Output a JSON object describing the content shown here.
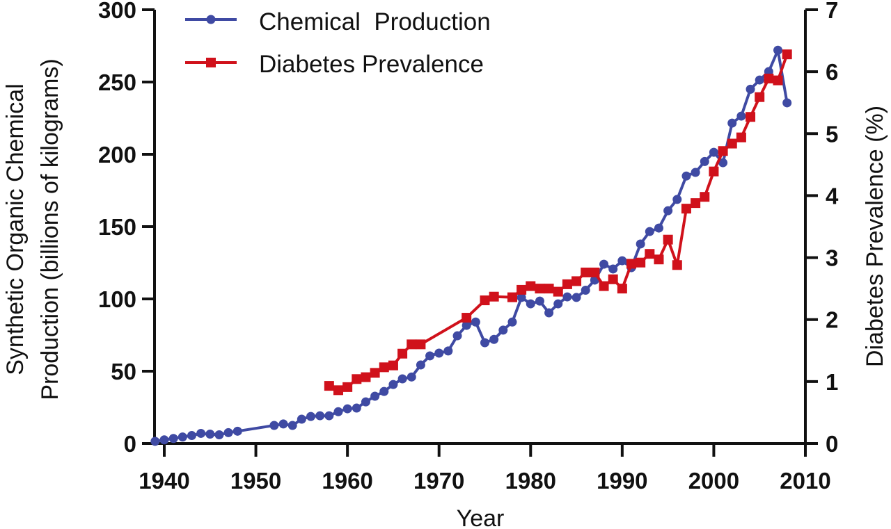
{
  "chart_data": {
    "type": "line",
    "title": "",
    "xlabel": "Year",
    "ylabel": [
      "Synthetic  Organic  Chemical",
      "Production (billions of kilograms)"
    ],
    "y2label": "Diabetes  Prevalence (%)",
    "xlim": [
      1939,
      2010
    ],
    "ylim": [
      0,
      300
    ],
    "y2lim": [
      0,
      7
    ],
    "x_ticks": [
      1940,
      1950,
      1960,
      1970,
      1980,
      1990,
      2000,
      2010
    ],
    "y_ticks": [
      0,
      50,
      100,
      150,
      200,
      250,
      300
    ],
    "y2_ticks": [
      0,
      1,
      2,
      3,
      4,
      5,
      6,
      7
    ],
    "grid": false,
    "legend_position": "top-left",
    "series": [
      {
        "name": "Chemical  Production",
        "axis": "left",
        "color": "#3f4aa3",
        "marker": "circle",
        "x": [
          1939,
          1940,
          1941,
          1942,
          1943,
          1944,
          1945,
          1946,
          1947,
          1948,
          1952,
          1953,
          1954,
          1955,
          1956,
          1957,
          1958,
          1959,
          1960,
          1961,
          1962,
          1963,
          1964,
          1965,
          1966,
          1967,
          1968,
          1969,
          1970,
          1971,
          1972,
          1973,
          1974,
          1975,
          1976,
          1977,
          1978,
          1979,
          1980,
          1981,
          1982,
          1983,
          1984,
          1985,
          1986,
          1987,
          1988,
          1989,
          1990,
          1991,
          1992,
          1993,
          1994,
          1995,
          1996,
          1997,
          1998,
          1999,
          2000,
          2001,
          2002,
          2003,
          2004,
          2005,
          2006,
          2007,
          2008
        ],
        "values": [
          1.5,
          2.5,
          3.5,
          4.5,
          5.5,
          7,
          6.5,
          6,
          7.5,
          8.5,
          12.5,
          13.5,
          12.5,
          16.8,
          18.7,
          19.2,
          19.2,
          22,
          24,
          24.5,
          28.8,
          32.7,
          36,
          40.8,
          44.7,
          46,
          54.3,
          60.6,
          62.5,
          64,
          74.5,
          81.7,
          84,
          69.7,
          72,
          78.4,
          84,
          101,
          96.6,
          98.5,
          90.4,
          96.6,
          101.4,
          101,
          106,
          113,
          124,
          120.7,
          126.4,
          121.6,
          138,
          146.6,
          149,
          161,
          168.8,
          185,
          187.5,
          195,
          201.4,
          194.2,
          221.6,
          226.4,
          245,
          251.4,
          257.2,
          272,
          235.6
        ]
      },
      {
        "name": "Diabetes Prevalence",
        "axis": "right",
        "color": "#d0111b",
        "marker": "square",
        "x": [
          1958,
          1959,
          1960,
          1961,
          1962,
          1963,
          1964,
          1965,
          1966,
          1967,
          1968,
          1973,
          1975,
          1976,
          1978,
          1979,
          1980,
          1981,
          1982,
          1983,
          1984,
          1985,
          1986,
          1987,
          1988,
          1989,
          1990,
          1991,
          1992,
          1993,
          1994,
          1995,
          1996,
          1997,
          1998,
          1999,
          2000,
          2001,
          2002,
          2003,
          2004,
          2005,
          2006,
          2007,
          2008
        ],
        "values": [
          0.93,
          0.86,
          0.91,
          1.04,
          1.07,
          1.14,
          1.23,
          1.26,
          1.45,
          1.6,
          1.6,
          2.03,
          2.31,
          2.37,
          2.36,
          2.48,
          2.54,
          2.5,
          2.5,
          2.45,
          2.57,
          2.62,
          2.76,
          2.76,
          2.54,
          2.65,
          2.5,
          2.9,
          2.92,
          3.06,
          2.97,
          3.29,
          2.88,
          3.79,
          3.88,
          3.98,
          4.39,
          4.72,
          4.84,
          4.94,
          5.27,
          5.59,
          5.89,
          5.86,
          6.28
        ]
      }
    ]
  }
}
